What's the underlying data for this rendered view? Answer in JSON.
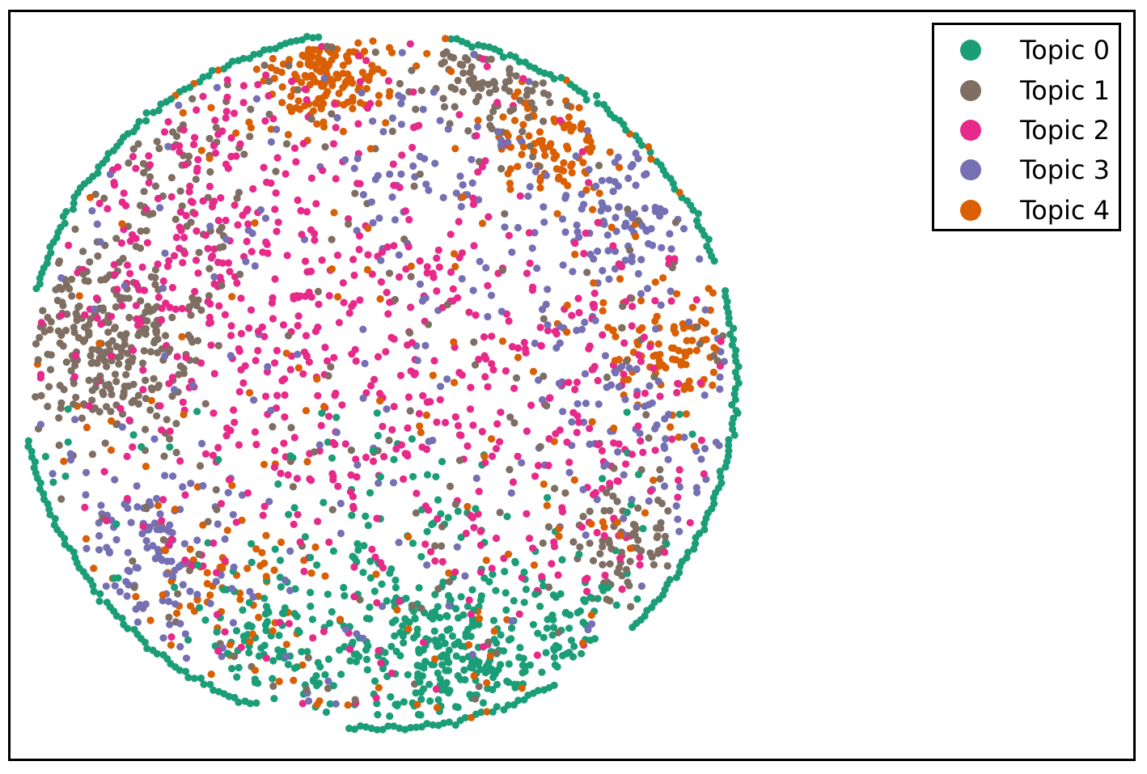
{
  "chart_data": {
    "type": "scatter",
    "title": "",
    "xlabel": "",
    "ylabel": "",
    "axes_visible": false,
    "grid": false,
    "legend_position": "top-right",
    "series": [
      {
        "name": "Topic 0",
        "color": "#1b9e77"
      },
      {
        "name": "Topic 1",
        "color": "#7f6e62"
      },
      {
        "name": "Topic 2",
        "color": "#e7298a"
      },
      {
        "name": "Topic 3",
        "color": "#7570b3"
      },
      {
        "name": "Topic 4",
        "color": "#d95f02"
      }
    ]
  }
}
